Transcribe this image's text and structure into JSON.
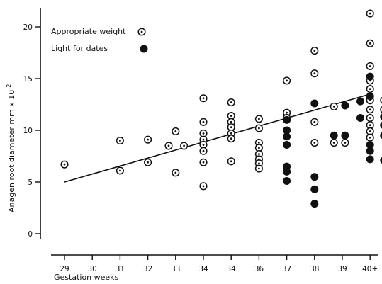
{
  "chart_data": {
    "type": "scatter",
    "title": "",
    "xlabel": "Gestation weeks",
    "ylabel_main": "Anagen root diameter mm x 10",
    "ylabel_exp": "-2",
    "x_tick_labels": [
      "29",
      "30",
      "31",
      "32",
      "33",
      "34",
      "34",
      "36",
      "37",
      "38",
      "39",
      "40+"
    ],
    "y_ticks": [
      0,
      5,
      10,
      15,
      20
    ],
    "y_tick_labels": [
      "0",
      "5",
      "10",
      "15",
      "20"
    ],
    "ylim": [
      0,
      22
    ],
    "grid": false,
    "legend_position": "top-left",
    "trend_line": {
      "from": {
        "x_index": 0,
        "y": 5.0
      },
      "to": {
        "x_index": 11,
        "y": 13.5
      }
    },
    "series": [
      {
        "name": "Appropriate weight",
        "marker": "dotted-circle",
        "points": [
          {
            "x_index": 0,
            "y": 6.7
          },
          {
            "x_index": 2,
            "y": 9.0
          },
          {
            "x_index": 2,
            "y": 6.1
          },
          {
            "x_index": 3,
            "y": 9.1
          },
          {
            "x_index": 3,
            "y": 6.9
          },
          {
            "x_index": 3.75,
            "y": 8.5
          },
          {
            "x_index": 4,
            "y": 9.9
          },
          {
            "x_index": 4,
            "y": 5.9
          },
          {
            "x_index": 4.3,
            "y": 8.5
          },
          {
            "x_index": 5,
            "y": 13.1
          },
          {
            "x_index": 5,
            "y": 10.8
          },
          {
            "x_index": 5,
            "y": 9.7
          },
          {
            "x_index": 5,
            "y": 9.1
          },
          {
            "x_index": 5,
            "y": 8.6
          },
          {
            "x_index": 5,
            "y": 8.0
          },
          {
            "x_index": 5,
            "y": 6.9
          },
          {
            "x_index": 5,
            "y": 4.6
          },
          {
            "x_index": 6,
            "y": 12.7
          },
          {
            "x_index": 6,
            "y": 11.4
          },
          {
            "x_index": 6,
            "y": 10.8
          },
          {
            "x_index": 6,
            "y": 10.3
          },
          {
            "x_index": 6,
            "y": 9.7
          },
          {
            "x_index": 6,
            "y": 9.2
          },
          {
            "x_index": 6,
            "y": 7.0
          },
          {
            "x_index": 7,
            "y": 11.1
          },
          {
            "x_index": 7,
            "y": 10.2
          },
          {
            "x_index": 7,
            "y": 8.8
          },
          {
            "x_index": 7,
            "y": 8.3
          },
          {
            "x_index": 7,
            "y": 7.7
          },
          {
            "x_index": 7,
            "y": 7.2
          },
          {
            "x_index": 7,
            "y": 6.8
          },
          {
            "x_index": 7,
            "y": 6.3
          },
          {
            "x_index": 8,
            "y": 14.8
          },
          {
            "x_index": 8,
            "y": 11.7
          },
          {
            "x_index": 8,
            "y": 11.2
          },
          {
            "x_index": 9,
            "y": 17.7
          },
          {
            "x_index": 9,
            "y": 15.5
          },
          {
            "x_index": 9,
            "y": 10.8
          },
          {
            "x_index": 9,
            "y": 8.8
          },
          {
            "x_index": 9.7,
            "y": 12.3
          },
          {
            "x_index": 9.7,
            "y": 8.8
          },
          {
            "x_index": 10.1,
            "y": 8.8
          },
          {
            "x_index": 11,
            "y": 21.3
          },
          {
            "x_index": 11,
            "y": 18.4
          },
          {
            "x_index": 11,
            "y": 16.2
          },
          {
            "x_index": 11,
            "y": 14.8
          },
          {
            "x_index": 11,
            "y": 14.0
          },
          {
            "x_index": 11,
            "y": 12.9
          },
          {
            "x_index": 11,
            "y": 12.0
          },
          {
            "x_index": 11,
            "y": 11.2
          },
          {
            "x_index": 11,
            "y": 10.5
          },
          {
            "x_index": 11,
            "y": 9.9
          },
          {
            "x_index": 11,
            "y": 9.3
          },
          {
            "x_index": 11.5,
            "y": 12.9
          },
          {
            "x_index": 11.5,
            "y": 12.0
          }
        ]
      },
      {
        "name": "Light for dates",
        "marker": "filled-circle",
        "points": [
          {
            "x_index": 8,
            "y": 11.0
          },
          {
            "x_index": 8,
            "y": 10.0
          },
          {
            "x_index": 8,
            "y": 9.4
          },
          {
            "x_index": 8,
            "y": 8.6
          },
          {
            "x_index": 8,
            "y": 6.5
          },
          {
            "x_index": 8,
            "y": 6.0
          },
          {
            "x_index": 8,
            "y": 5.1
          },
          {
            "x_index": 9,
            "y": 12.6
          },
          {
            "x_index": 9,
            "y": 5.5
          },
          {
            "x_index": 9,
            "y": 4.3
          },
          {
            "x_index": 9,
            "y": 2.9
          },
          {
            "x_index": 9.7,
            "y": 9.5
          },
          {
            "x_index": 10.1,
            "y": 12.4
          },
          {
            "x_index": 10.1,
            "y": 9.5
          },
          {
            "x_index": 10.65,
            "y": 12.8
          },
          {
            "x_index": 10.65,
            "y": 11.2
          },
          {
            "x_index": 11,
            "y": 15.2
          },
          {
            "x_index": 11,
            "y": 13.3
          },
          {
            "x_index": 11,
            "y": 8.6
          },
          {
            "x_index": 11,
            "y": 8.0
          },
          {
            "x_index": 11,
            "y": 7.2
          },
          {
            "x_index": 11.5,
            "y": 11.3
          },
          {
            "x_index": 11.5,
            "y": 10.5
          },
          {
            "x_index": 11.5,
            "y": 9.5
          },
          {
            "x_index": 11.5,
            "y": 7.1
          }
        ]
      }
    ]
  }
}
